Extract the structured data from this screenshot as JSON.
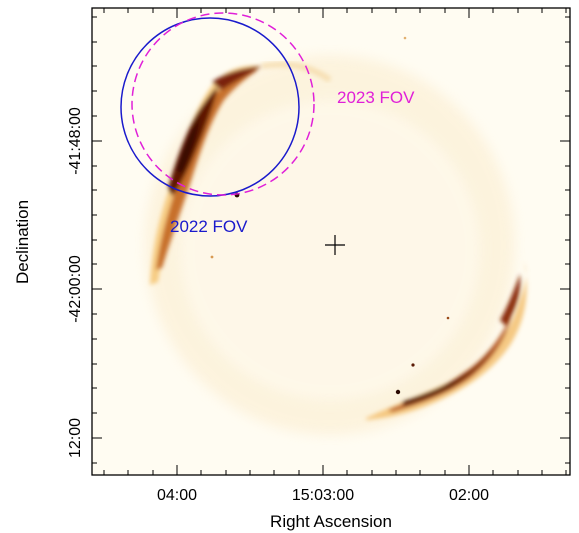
{
  "figure": {
    "xlabel": "Right Ascension",
    "ylabel": "Declination",
    "x_ticks": [
      "04:00",
      "15:03:00",
      "02:00"
    ],
    "y_ticks": [
      "-41:48:00",
      "-42:00:00",
      "12:00"
    ],
    "fov_2022": {
      "label": "2022 FOV",
      "color": "#1a1acc"
    },
    "fov_2023": {
      "label": "2023 FOV",
      "color": "#e020d8"
    },
    "center_marker": "crosshair",
    "colormap": [
      "#fffaea",
      "#f7c877",
      "#b4501a",
      "#4a1004"
    ]
  }
}
